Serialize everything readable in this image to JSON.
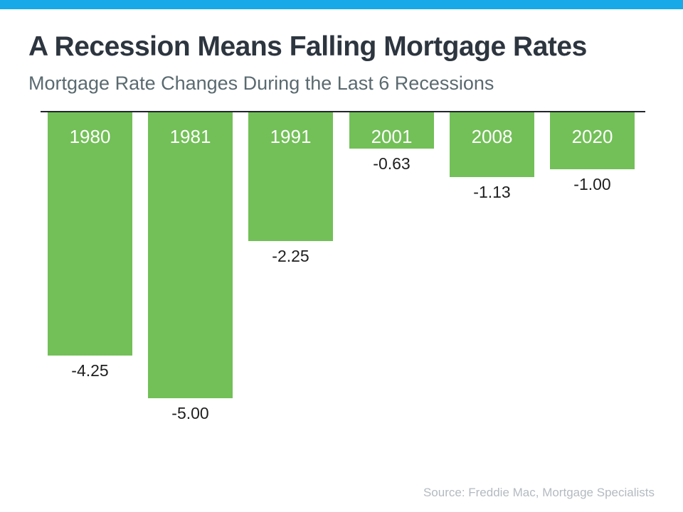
{
  "banner": {
    "color": "#18a9e8"
  },
  "header": {
    "title": "A Recession Means Falling Mortgage Rates",
    "subtitle": "Mortgage Rate Changes During the Last 6 Recessions"
  },
  "chart_data": {
    "type": "bar",
    "title": "A Recession Means Falling Mortgage Rates",
    "subtitle": "Mortgage Rate Changes During the Last 6 Recessions",
    "categories": [
      "1980",
      "1981",
      "1991",
      "2001",
      "2008",
      "2020"
    ],
    "values": [
      -4.25,
      -5.0,
      -2.25,
      -0.63,
      -1.13,
      -1.0
    ],
    "value_labels": [
      "-4.25",
      "-5.00",
      "-2.25",
      "-0.63",
      "-1.13",
      "-1.00"
    ],
    "xlabel": "",
    "ylabel": "",
    "ylim": [
      -5.5,
      0
    ],
    "orientation": "vertical",
    "bars_extend_downward_from_baseline": true,
    "grid": false,
    "legend_position": "none",
    "bar_color": "#72c057",
    "baseline_color": "#22262a",
    "category_label_color": "#ffffff",
    "value_label_color": "#1e1e1e"
  },
  "footer": {
    "source": "Source: Freddie Mac, Mortgage Specialists"
  }
}
